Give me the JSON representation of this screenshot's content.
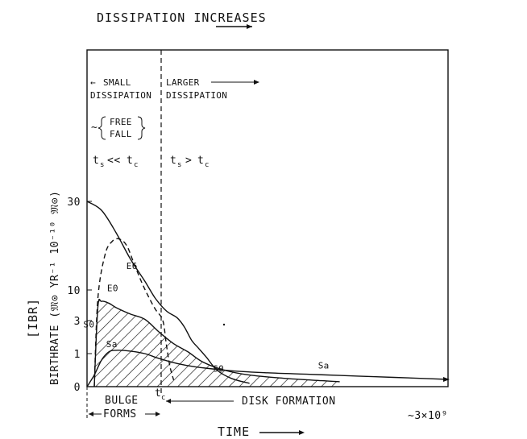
{
  "chart_data": {
    "type": "line",
    "title": "DISSIPATION INCREASES",
    "xlabel": "TIME",
    "ylabel": "BIRTHRATE (𝔐⊙ YR⁻¹ 10⁻¹⁰ 𝔐⊙)",
    "ylabel_bracket": "[IBR]",
    "y_ticks": [
      "0",
      "1",
      "3",
      "10",
      "30"
    ],
    "x_end_label": "~3×10⁹",
    "tc_label": "t",
    "tc_sub": "c",
    "regions": {
      "left": {
        "label_line1": "SMALL",
        "label_line2": "DISSIPATION",
        "freefall_line1": "FREE",
        "freefall_line2": "FALL",
        "freefall_prefix": "~",
        "condition": "ts << tc"
      },
      "right": {
        "label_line1": "LARGER",
        "label_line2": "DISSIPATION",
        "condition": "ts > tc"
      }
    },
    "cond_left": {
      "t": "t",
      "s": "s",
      "op": "<<",
      "t2": "t",
      "c": "c"
    },
    "cond_right": {
      "t": "t",
      "s": "s",
      "op": ">",
      "t2": "t",
      "c": "c"
    },
    "bottom_labels": {
      "bulge_line1": "BULGE",
      "bulge_line2": "FORMS",
      "disk": "DISK FORMATION"
    },
    "series": [
      {
        "name": "E0",
        "style": "solid",
        "points": [
          [
            0,
            30
          ],
          [
            0.04,
            28
          ],
          [
            0.08,
            23
          ],
          [
            0.12,
            17
          ],
          [
            0.16,
            12
          ],
          [
            0.19,
            8
          ],
          [
            0.22,
            5.2
          ],
          [
            0.25,
            3.6
          ],
          [
            0.27,
            2.6
          ],
          [
            0.29,
            1.8
          ],
          [
            0.31,
            1.3
          ],
          [
            0.33,
            0.9
          ],
          [
            0.36,
            0.5
          ],
          [
            0.4,
            0.25
          ],
          [
            0.45,
            0.1
          ]
        ]
      },
      {
        "name": "E6",
        "style": "dashed",
        "points": [
          [
            0.02,
            0
          ],
          [
            0.03,
            8
          ],
          [
            0.05,
            18
          ],
          [
            0.07,
            21
          ],
          [
            0.09,
            21.5
          ],
          [
            0.11,
            20
          ],
          [
            0.13,
            16
          ],
          [
            0.15,
            12
          ],
          [
            0.17,
            8.5
          ],
          [
            0.19,
            5.5
          ],
          [
            0.21,
            3
          ],
          [
            0.22,
            1.5
          ],
          [
            0.23,
            0.6
          ],
          [
            0.24,
            0.2
          ]
        ]
      },
      {
        "name": "S0",
        "style": "solid",
        "points": [
          [
            0.02,
            0
          ],
          [
            0.03,
            6
          ],
          [
            0.04,
            7.4
          ],
          [
            0.06,
            7
          ],
          [
            0.08,
            6
          ],
          [
            0.12,
            4.5
          ],
          [
            0.16,
            3.3
          ],
          [
            0.2,
            2.3
          ],
          [
            0.24,
            1.6
          ],
          [
            0.28,
            1.1
          ],
          [
            0.32,
            0.75
          ],
          [
            0.38,
            0.5
          ],
          [
            0.45,
            0.35
          ],
          [
            0.55,
            0.25
          ],
          [
            0.65,
            0.18
          ],
          [
            0.7,
            0.15
          ]
        ]
      },
      {
        "name": "Sa",
        "style": "solid",
        "points": [
          [
            0,
            0
          ],
          [
            0.02,
            0.35
          ],
          [
            0.04,
            0.8
          ],
          [
            0.06,
            1.1
          ],
          [
            0.08,
            1.2
          ],
          [
            0.12,
            1.15
          ],
          [
            0.16,
            1.0
          ],
          [
            0.2,
            0.85
          ],
          [
            0.25,
            0.7
          ],
          [
            0.3,
            0.6
          ],
          [
            0.4,
            0.48
          ],
          [
            0.5,
            0.42
          ],
          [
            0.6,
            0.38
          ],
          [
            0.7,
            0.34
          ],
          [
            0.8,
            0.3
          ],
          [
            0.9,
            0.26
          ],
          [
            1.0,
            0.22
          ]
        ]
      }
    ]
  }
}
